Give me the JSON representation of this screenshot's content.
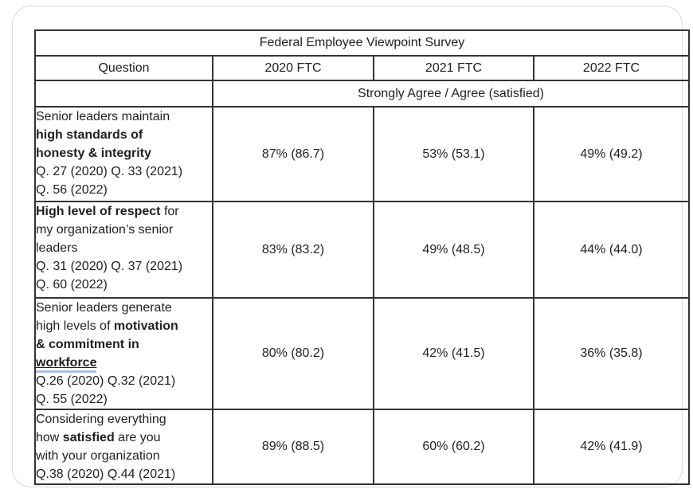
{
  "colors": {
    "table_border": "#333333",
    "text": "#1f1f1f",
    "grammar_underline": "#a9c2e1",
    "card_border": "#d9d9d9"
  },
  "table": {
    "title": "Federal Employee Viewpoint Survey",
    "columns": [
      "Question",
      "2020 FTC",
      "2021 FTC",
      "2022 FTC"
    ],
    "subheader": "Strongly Agree / Agree (satisfied)",
    "rows": [
      {
        "question_lines": [
          [
            {
              "text": "Senior leaders maintain"
            }
          ],
          [
            {
              "text": "high standards of",
              "bold": true
            }
          ],
          [
            {
              "text": "honesty & integrity",
              "bold": true
            }
          ],
          [
            {
              "text": "Q. 27 (2020) Q. 33 (2021)"
            }
          ],
          [
            {
              "text": "Q. 56 (2022)"
            }
          ]
        ],
        "values": [
          "87% (86.7)",
          "53% (53.1)",
          "49% (49.2)"
        ]
      },
      {
        "question_lines": [
          [
            {
              "text": "High level of respect",
              "bold": true
            },
            {
              "text": " for"
            }
          ],
          [
            {
              "text": "my organization’s senior"
            }
          ],
          [
            {
              "text": "leaders"
            }
          ],
          [
            {
              "text": "Q. 31 (2020) Q. 37 (2021)"
            }
          ],
          [
            {
              "text": "Q. 60 (2022)"
            }
          ]
        ],
        "values": [
          "83% (83.2)",
          "49% (48.5)",
          "44% (44.0)"
        ]
      },
      {
        "question_lines": [
          [
            {
              "text": "Senior leaders generate"
            }
          ],
          [
            {
              "text": "high levels of "
            },
            {
              "text": "motivation",
              "bold": true
            }
          ],
          [
            {
              "text": "& commitment in",
              "bold": true
            }
          ],
          [
            {
              "text": "workforce",
              "bold": true,
              "underline": true
            }
          ],
          [
            {
              "text": "Q.26 (2020) Q.32 (2021)"
            }
          ],
          [
            {
              "text": "Q. 55 (2022)"
            }
          ]
        ],
        "values": [
          "80% (80.2)",
          "42% (41.5)",
          "36% (35.8)"
        ]
      },
      {
        "question_lines": [
          [
            {
              "text": "Considering everything"
            }
          ],
          [
            {
              "text": "how "
            },
            {
              "text": "satisfied",
              "bold": true
            },
            {
              "text": " are you"
            }
          ],
          [
            {
              "text": "with your organization"
            }
          ],
          [
            {
              "text": "Q.38 (2020) Q.44 (2021)"
            }
          ]
        ],
        "values": [
          "89% (88.5)",
          "60% (60.2)",
          "42% (41.9)"
        ]
      }
    ]
  }
}
